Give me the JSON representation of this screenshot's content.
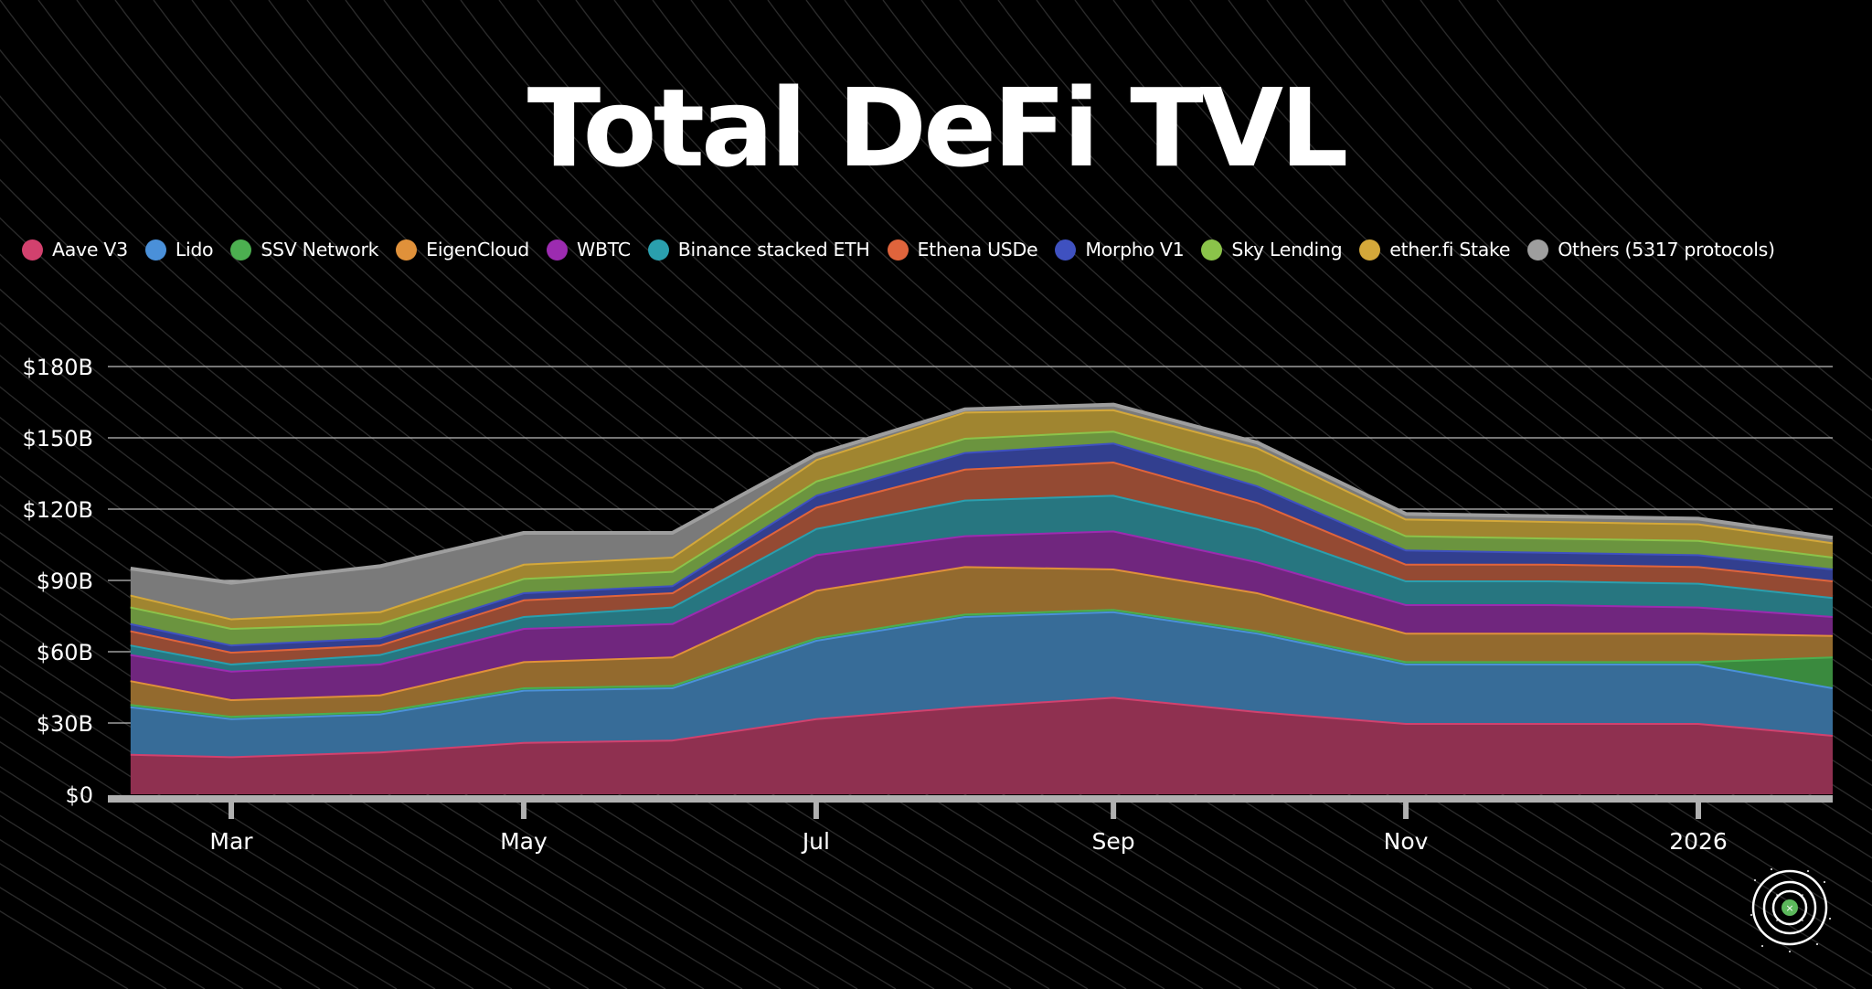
{
  "title": "Total DeFi TVL",
  "legend": [
    {
      "label": "Aave V3",
      "color": "#d2416e"
    },
    {
      "label": "Lido",
      "color": "#4a90d9"
    },
    {
      "label": "SSV Network",
      "color": "#4caf50"
    },
    {
      "label": "EigenCloud",
      "color": "#e0913a"
    },
    {
      "label": "WBTC",
      "color": "#9c2bb0"
    },
    {
      "label": "Binance stacked ETH",
      "color": "#2a9fae"
    },
    {
      "label": "Ethena USDe",
      "color": "#e0643c"
    },
    {
      "label": "Morpho V1",
      "color": "#3f51c0"
    },
    {
      "label": "Sky Lending",
      "color": "#8bc34a"
    },
    {
      "label": "ether.fi Stake",
      "color": "#d4a83a"
    },
    {
      "label": "Others (5317 protocols)",
      "color": "#9e9e9e"
    }
  ],
  "chart_data": {
    "type": "area",
    "stacked": true,
    "title": "Total DeFi TVL",
    "xlabel": "",
    "ylabel": "",
    "x": [
      "2025-02-08",
      "2025-03-01",
      "2025-04-01",
      "2025-05-01",
      "2025-06-01",
      "2025-07-01",
      "2025-08-01",
      "2025-09-01",
      "2025-10-01",
      "2025-11-01",
      "2025-12-01",
      "2026-01-01",
      "2026-02-01"
    ],
    "x_ticks": [
      {
        "label": "Mar",
        "x": "2025-03-01"
      },
      {
        "label": "May",
        "x": "2025-05-01"
      },
      {
        "label": "Jul",
        "x": "2025-07-01"
      },
      {
        "label": "Sep",
        "x": "2025-09-01"
      },
      {
        "label": "Nov",
        "x": "2025-11-01"
      },
      {
        "label": "2026",
        "x": "2026-01-01"
      }
    ],
    "y_ticks": [
      "$0",
      "$30B",
      "$60B",
      "$90B",
      "$120B",
      "$150B",
      "$180B"
    ],
    "y_tick_values": [
      0,
      30,
      60,
      90,
      120,
      150,
      180
    ],
    "ylim": [
      0,
      180
    ],
    "unit": "USD billions",
    "grid": true,
    "legend_position": "top",
    "series": [
      {
        "name": "Aave V3",
        "values": [
          17,
          16,
          18,
          22,
          23,
          32,
          37,
          41,
          35,
          30,
          30,
          30,
          25
        ]
      },
      {
        "name": "Lido",
        "values": [
          20,
          16,
          16,
          22,
          22,
          33,
          38,
          36,
          33,
          25,
          25,
          25,
          20
        ]
      },
      {
        "name": "SSV Network",
        "values": [
          1,
          1,
          1,
          1,
          1,
          1,
          1,
          1,
          1,
          1,
          1,
          1,
          13
        ]
      },
      {
        "name": "EigenCloud",
        "values": [
          10,
          7,
          7,
          11,
          12,
          20,
          20,
          17,
          16,
          12,
          12,
          12,
          9
        ]
      },
      {
        "name": "WBTC",
        "values": [
          11,
          12,
          13,
          14,
          14,
          15,
          13,
          16,
          13,
          12,
          12,
          11,
          8
        ]
      },
      {
        "name": "Binance stacked ETH",
        "values": [
          4,
          3,
          4,
          5,
          7,
          11,
          15,
          15,
          14,
          10,
          10,
          10,
          8
        ]
      },
      {
        "name": "Ethena USDe",
        "values": [
          6,
          5,
          4,
          7,
          6,
          9,
          13,
          14,
          11,
          7,
          7,
          7,
          7
        ]
      },
      {
        "name": "Morpho V1",
        "values": [
          3,
          3,
          3,
          3,
          3,
          5,
          7,
          8,
          7,
          6,
          5,
          5,
          5
        ]
      },
      {
        "name": "Sky Lending",
        "values": [
          7,
          7,
          6,
          6,
          6,
          6,
          6,
          5,
          6,
          6,
          6,
          6,
          5
        ]
      },
      {
        "name": "ether.fi Stake",
        "values": [
          5,
          4,
          5,
          6,
          6,
          9,
          11,
          9,
          10,
          7,
          7,
          7,
          6
        ]
      },
      {
        "name": "Others (5317 protocols)",
        "values": [
          11,
          15,
          19,
          13,
          10,
          2,
          1,
          2,
          2,
          2,
          2,
          2,
          2
        ]
      }
    ],
    "fill_colors": [
      "#8f3050",
      "#376c98",
      "#3a8a3e",
      "#936a2e",
      "#70267e",
      "#277680",
      "#944a33",
      "#323f8f",
      "#6b943f",
      "#a08530",
      "#7a7a7a"
    ],
    "edge_colors": [
      "#d2416e",
      "#4a90d9",
      "#4caf50",
      "#e0913a",
      "#9c2bb0",
      "#2a9fae",
      "#e0643c",
      "#3f51c0",
      "#8bc34a",
      "#d4a83a",
      "#9e9e9e"
    ]
  }
}
